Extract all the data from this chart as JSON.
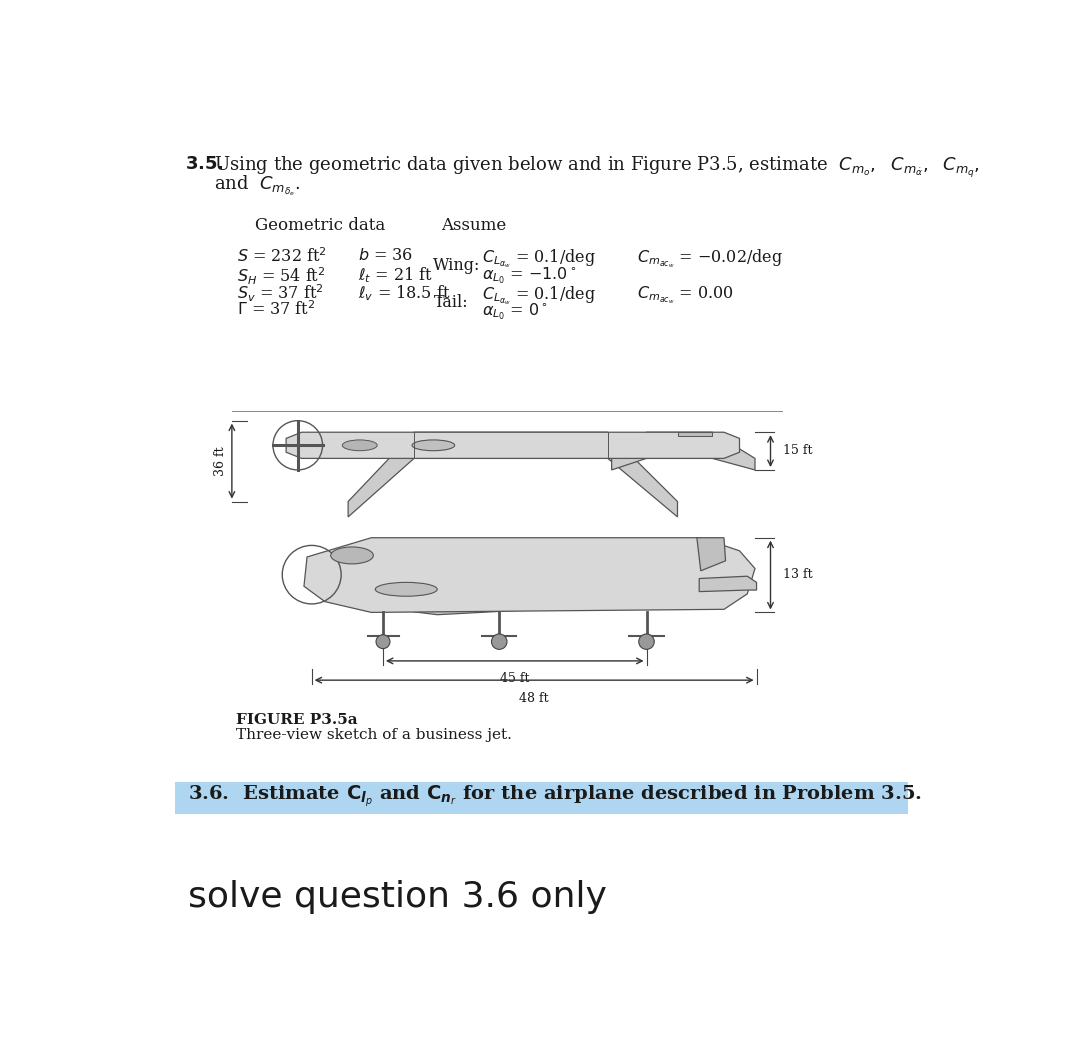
{
  "page_bg": "#ffffff",
  "title_35_prefix": "3.5.",
  "title_35_body": "Using the geometric data given below and in Figure P3.5, estimate ",
  "title_35_math": "C_{m_o}, C_{m_{\\dot{\\alpha}}}, C_{m_q},",
  "title_35_line2": "and C_{m_{\\delta_e}}.",
  "geo_header": "Geometric data",
  "assume_header": "Assume",
  "geo_col1": [
    "$S$ = 232 ft$^2$",
    "$S_H$ = 54 ft$^2$",
    "$S_v$ = 37 ft$^2$",
    "$\\Gamma$ = 37 ft$^2$"
  ],
  "geo_col2": [
    "$b$ = 36",
    "$\\ell_t$ = 21 ft",
    "$\\ell_v$ = 18.5 ft"
  ],
  "wing_label": "Wing:",
  "tail_label": "Tail:",
  "wing_row1a": "$C_{L_{\\alpha_w}}$ = 0.1/deg",
  "wing_row1b": "$C_{m_{ac_w}}$ = $-$0.02/deg",
  "wing_row2": "$\\alpha_{L_0}$ = $-1.0^\\circ$",
  "tail_row1a": "$C_{L_{\\alpha_w}}$ = 0.1/deg",
  "tail_row1b": "$C_{m_{ac_w}}$ = 0.00",
  "tail_row2": "$\\alpha_{L_0}$ = $0^\\circ$",
  "figure_label": "FIGURE P3.5a",
  "figure_caption": "Three-view sketch of a business jet.",
  "dim_36ft": "36 ft",
  "dim_15ft": "15 ft",
  "dim_13ft": "13 ft",
  "dim_45ft": "45 ft",
  "dim_48ft": "48 ft",
  "problem_36_text": "3.6.  Estimate $\\mathbf{C}_{\\boldsymbol{l}_p}$ and $\\mathbf{C}_{\\boldsymbol{n}_r}$ for the airplane described in Problem 3.5.",
  "solve_text": "solve question 3.6 only",
  "highlight_color": "#aed6f1",
  "text_color": "#1a1a1a",
  "aircraft_edge": "#555555",
  "aircraft_face": "#d0d0d0",
  "fontsize_main": 13,
  "fontsize_geo": 11.5,
  "fontsize_solve": 26,
  "fontsize_p36": 14
}
